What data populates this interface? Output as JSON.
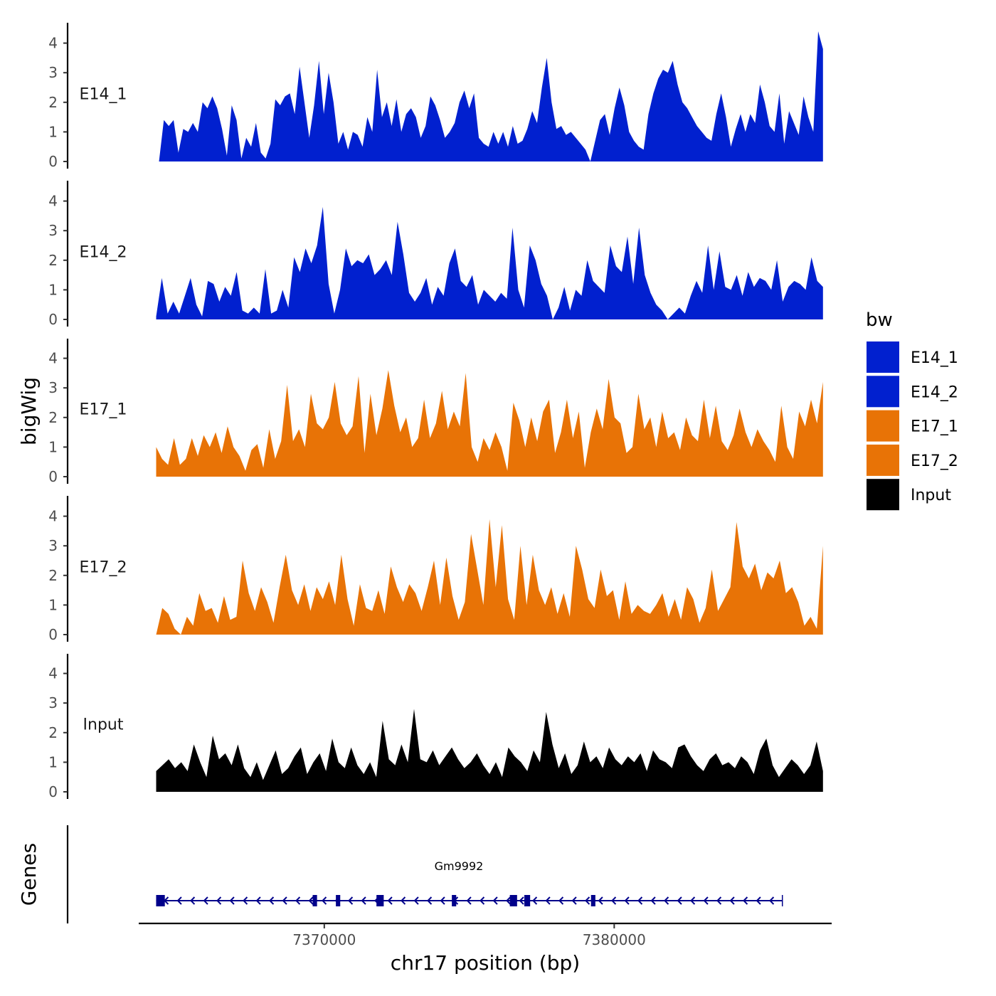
{
  "chart_data": {
    "type": "area",
    "y_axis_title": "bigWig",
    "x_axis_title": "chr17 position (bp)",
    "genes_axis_title": "Genes",
    "xlim": [
      7363600,
      7387500
    ],
    "ylim": [
      0,
      4.6
    ],
    "y_ticks": [
      0,
      1,
      2,
      3,
      4
    ],
    "x_ticks": [
      7370000,
      7380000
    ],
    "x_tick_labels": [
      "7370000",
      "7380000"
    ],
    "legend": {
      "title": "bw",
      "entries": [
        {
          "label": "E14_1",
          "color": "#0120CF"
        },
        {
          "label": "E14_2",
          "color": "#0120CF"
        },
        {
          "label": "E17_1",
          "color": "#E87306"
        },
        {
          "label": "E17_2",
          "color": "#E87306"
        },
        {
          "label": "Input",
          "color": "#000000"
        }
      ]
    },
    "series": [
      {
        "name": "E14_1",
        "color": "#0120CF",
        "x_start": 7364300,
        "x_end": 7387200,
        "values": [
          0.0,
          1.4,
          1.2,
          1.4,
          0.3,
          1.1,
          1.0,
          1.3,
          1.0,
          2.0,
          1.8,
          2.2,
          1.8,
          1.1,
          0.2,
          1.9,
          1.4,
          0.1,
          0.8,
          0.5,
          1.3,
          0.3,
          0.1,
          0.6,
          2.1,
          1.9,
          2.2,
          2.3,
          1.6,
          3.2,
          2.0,
          0.8,
          1.9,
          3.4,
          1.6,
          3.0,
          2.0,
          0.6,
          1.0,
          0.4,
          1.0,
          0.9,
          0.5,
          1.5,
          1.0,
          3.1,
          1.5,
          2.0,
          1.2,
          2.1,
          1.0,
          1.6,
          1.8,
          1.5,
          0.8,
          1.2,
          2.2,
          1.9,
          1.4,
          0.8,
          1.0,
          1.3,
          2.0,
          2.4,
          1.8,
          2.3,
          0.8,
          0.6,
          0.5,
          1.0,
          0.6,
          1.0,
          0.5,
          1.2,
          0.6,
          0.7,
          1.1,
          1.7,
          1.3,
          2.5,
          3.5,
          2.0,
          1.1,
          1.2,
          0.9,
          1.0,
          0.8,
          0.6,
          0.4,
          0.0,
          0.7,
          1.4,
          1.6,
          0.9,
          1.8,
          2.5,
          1.9,
          1.0,
          0.7,
          0.5,
          0.4,
          1.6,
          2.3,
          2.8,
          3.1,
          3.0,
          3.4,
          2.6,
          2.0,
          1.8,
          1.5,
          1.2,
          1.0,
          0.8,
          0.7,
          1.6,
          2.3,
          1.5,
          0.5,
          1.1,
          1.6,
          1.0,
          1.6,
          1.3,
          2.6,
          2.0,
          1.2,
          1.0,
          2.3,
          0.6,
          1.7,
          1.3,
          0.9,
          2.2,
          1.5,
          1.0,
          4.4,
          3.8
        ]
      },
      {
        "name": "E14_2",
        "color": "#0120CF",
        "x_start": 7364200,
        "x_end": 7387200,
        "values": [
          0.1,
          1.4,
          0.2,
          0.6,
          0.2,
          0.8,
          1.4,
          0.5,
          0.1,
          1.3,
          1.2,
          0.6,
          1.1,
          0.8,
          1.6,
          0.3,
          0.2,
          0.4,
          0.2,
          1.7,
          0.2,
          0.3,
          1.0,
          0.4,
          2.1,
          1.6,
          2.4,
          1.9,
          2.5,
          3.8,
          1.2,
          0.2,
          1.0,
          2.4,
          1.8,
          2.0,
          1.9,
          2.2,
          1.5,
          1.7,
          2.0,
          1.5,
          3.3,
          2.2,
          0.9,
          0.6,
          0.9,
          1.4,
          0.5,
          1.1,
          0.8,
          1.9,
          2.4,
          1.3,
          1.1,
          1.5,
          0.5,
          1.0,
          0.8,
          0.6,
          0.9,
          0.7,
          3.1,
          1.0,
          0.4,
          2.5,
          2.0,
          1.2,
          0.8,
          0.0,
          0.4,
          1.1,
          0.3,
          1.0,
          0.8,
          2.0,
          1.3,
          1.1,
          0.9,
          2.5,
          1.8,
          1.6,
          2.8,
          1.2,
          3.1,
          1.5,
          0.9,
          0.5,
          0.3,
          0.0,
          0.2,
          0.4,
          0.2,
          0.8,
          1.3,
          0.9,
          2.5,
          1.0,
          2.3,
          1.1,
          1.0,
          1.5,
          0.8,
          1.6,
          1.1,
          1.4,
          1.3,
          1.0,
          2.0,
          0.6,
          1.1,
          1.3,
          1.2,
          1.0,
          2.1,
          1.3,
          1.1
        ]
      },
      {
        "name": "E17_1",
        "color": "#E87306",
        "x_start": 7364200,
        "x_end": 7387200,
        "values": [
          1.0,
          0.6,
          0.4,
          1.3,
          0.4,
          0.6,
          1.3,
          0.7,
          1.4,
          1.0,
          1.5,
          0.8,
          1.7,
          1.0,
          0.7,
          0.2,
          0.9,
          1.1,
          0.3,
          1.6,
          0.6,
          1.2,
          3.1,
          1.2,
          1.6,
          1.0,
          2.8,
          1.8,
          1.6,
          2.0,
          3.2,
          1.8,
          1.4,
          1.7,
          3.4,
          0.8,
          2.8,
          1.4,
          2.3,
          3.6,
          2.4,
          1.5,
          2.0,
          1.0,
          1.3,
          2.6,
          1.3,
          1.8,
          2.9,
          1.6,
          2.2,
          1.7,
          3.5,
          1.0,
          0.5,
          1.3,
          0.9,
          1.5,
          1.0,
          0.2,
          2.5,
          1.9,
          1.0,
          2.0,
          1.2,
          2.2,
          2.6,
          0.8,
          1.5,
          2.6,
          1.3,
          2.2,
          0.3,
          1.5,
          2.3,
          1.6,
          3.3,
          2.0,
          1.8,
          0.8,
          1.0,
          2.8,
          1.6,
          2.0,
          1.0,
          2.2,
          1.3,
          1.5,
          0.9,
          2.0,
          1.4,
          1.2,
          2.6,
          1.3,
          2.4,
          1.2,
          0.9,
          1.4,
          2.3,
          1.5,
          1.0,
          1.6,
          1.2,
          0.9,
          0.5,
          2.4,
          1.0,
          0.6,
          2.2,
          1.7,
          2.6,
          1.8,
          3.2
        ]
      },
      {
        "name": "E17_2",
        "color": "#E87306",
        "x_start": 7364200,
        "x_end": 7387200,
        "values": [
          0.0,
          0.9,
          0.7,
          0.2,
          0.0,
          0.6,
          0.3,
          1.4,
          0.8,
          0.9,
          0.4,
          1.3,
          0.5,
          0.6,
          2.5,
          1.4,
          0.8,
          1.6,
          1.1,
          0.4,
          1.6,
          2.7,
          1.5,
          1.0,
          1.7,
          0.8,
          1.6,
          1.2,
          1.8,
          1.0,
          2.7,
          1.2,
          0.3,
          1.7,
          0.9,
          0.8,
          1.5,
          0.7,
          2.3,
          1.6,
          1.1,
          1.7,
          1.4,
          0.8,
          1.6,
          2.5,
          1.0,
          2.6,
          1.3,
          0.5,
          1.1,
          3.4,
          2.2,
          1.0,
          3.9,
          1.6,
          3.7,
          1.2,
          0.5,
          3.0,
          1.0,
          2.7,
          1.5,
          1.0,
          1.6,
          0.7,
          1.4,
          0.6,
          3.0,
          2.2,
          1.2,
          0.9,
          2.2,
          1.3,
          1.5,
          0.5,
          1.8,
          0.7,
          1.0,
          0.8,
          0.7,
          1.0,
          1.4,
          0.6,
          1.2,
          0.5,
          1.6,
          1.2,
          0.4,
          0.9,
          2.2,
          0.8,
          1.2,
          1.6,
          3.8,
          2.3,
          1.9,
          2.4,
          1.5,
          2.1,
          1.9,
          2.5,
          1.4,
          1.6,
          1.1,
          0.3,
          0.6,
          0.2,
          3.0
        ]
      },
      {
        "name": "Input",
        "color": "#000000",
        "x_start": 7364200,
        "x_end": 7387200,
        "values": [
          0.7,
          0.9,
          1.1,
          0.8,
          1.0,
          0.7,
          1.6,
          1.0,
          0.5,
          1.9,
          1.1,
          1.3,
          0.9,
          1.6,
          0.8,
          0.5,
          1.0,
          0.4,
          0.9,
          1.4,
          0.6,
          0.8,
          1.2,
          1.5,
          0.6,
          1.0,
          1.3,
          0.7,
          1.8,
          1.0,
          0.8,
          1.5,
          0.9,
          0.6,
          1.0,
          0.5,
          2.4,
          1.1,
          0.9,
          1.6,
          1.0,
          2.8,
          1.1,
          1.0,
          1.4,
          0.9,
          1.2,
          1.5,
          1.1,
          0.8,
          1.0,
          1.3,
          0.9,
          0.6,
          1.0,
          0.5,
          1.5,
          1.2,
          1.0,
          0.7,
          1.4,
          1.0,
          2.7,
          1.6,
          0.8,
          1.3,
          0.6,
          0.9,
          1.7,
          1.0,
          1.2,
          0.8,
          1.5,
          1.1,
          0.9,
          1.2,
          1.0,
          1.3,
          0.7,
          1.4,
          1.1,
          1.0,
          0.8,
          1.5,
          1.6,
          1.2,
          0.9,
          0.7,
          1.1,
          1.3,
          0.9,
          1.0,
          0.8,
          1.2,
          1.0,
          0.6,
          1.4,
          1.8,
          0.9,
          0.5,
          0.8,
          1.1,
          0.9,
          0.6,
          0.9,
          1.7,
          0.7
        ]
      }
    ],
    "gene": {
      "name": "Gm9992",
      "strand": "-",
      "start": 7364200,
      "end": 7385800,
      "color": "#00008B",
      "exons": [
        [
          7364200,
          7364500
        ],
        [
          7369600,
          7369750
        ],
        [
          7370400,
          7370550
        ],
        [
          7371800,
          7372050
        ],
        [
          7374400,
          7374550
        ],
        [
          7376400,
          7376650
        ],
        [
          7376900,
          7377100
        ],
        [
          7379200,
          7379350
        ]
      ]
    }
  }
}
